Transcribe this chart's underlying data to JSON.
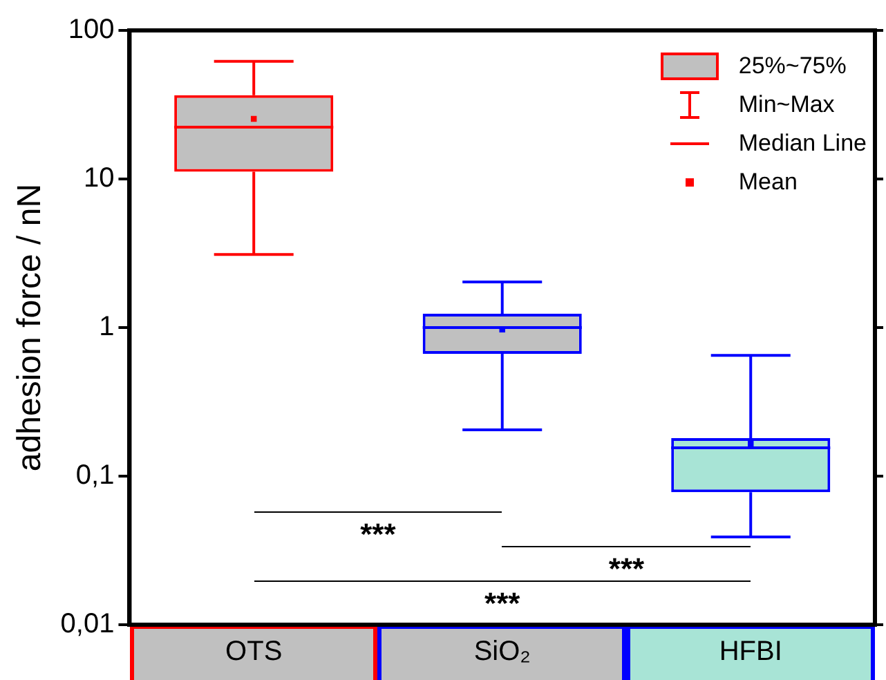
{
  "chart_data": {
    "type": "box",
    "categories": [
      "OTS",
      "SiO₂",
      "HFBI"
    ],
    "colors": [
      "#c0c0c0",
      "#c0c0c0",
      "#a8e4d6"
    ],
    "series": [
      {
        "color": "#ff0000",
        "boxes": [
          {
            "low": 3.1,
            "q1": 11.2,
            "median": 22.3,
            "q3": 36.6,
            "high": 62,
            "mean": 25.4
          },
          null,
          null
        ]
      },
      {
        "color": "#0000ff",
        "boxes": [
          null,
          {
            "low": 0.205,
            "q1": 0.665,
            "median": 1.0,
            "q3": 1.24,
            "high": 2.03,
            "mean": 0.97
          },
          {
            "low": 0.039,
            "q1": 0.078,
            "median": 0.155,
            "q3": 0.18,
            "high": 0.65,
            "mean": 0.165
          }
        ]
      }
    ],
    "ylabel": "adhesion force / nN",
    "log": true,
    "ylim": [
      0.01,
      100
    ],
    "yticks": [
      {
        "value": 0.01,
        "label": "0,01"
      },
      {
        "value": 0.1,
        "label": "0,1"
      },
      1,
      10,
      100
    ],
    "grid": false,
    "annotations": [
      "25%~75%",
      "Min~Max",
      "Median Line",
      "Mean",
      "***",
      "***",
      "***"
    ]
  }
}
